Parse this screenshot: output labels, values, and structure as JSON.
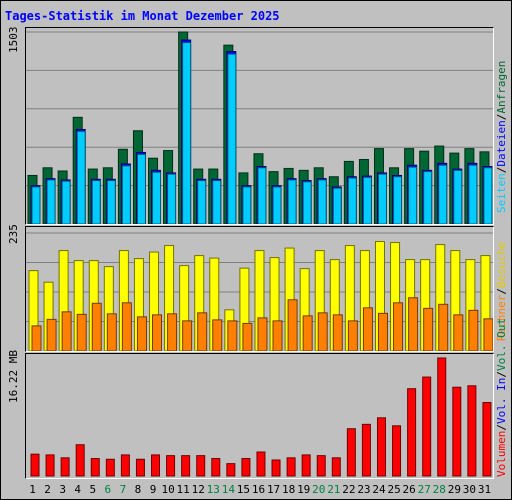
{
  "title": "Tages-Statistik im Monat Dezember 2025",
  "colors": {
    "weekday": "#000000",
    "weekend": "#008040",
    "separator": "#000000"
  },
  "chart_data": [
    {
      "type": "bar",
      "panel": "top",
      "ymax_label": "1503",
      "ylim": [
        0,
        1503
      ],
      "grid": true,
      "categories": [
        "1",
        "2",
        "3",
        "4",
        "5",
        "6",
        "7",
        "8",
        "9",
        "10",
        "11",
        "12",
        "13",
        "14",
        "15",
        "16",
        "17",
        "18",
        "19",
        "20",
        "21",
        "22",
        "23",
        "24",
        "25",
        "26",
        "27",
        "28",
        "29",
        "30",
        "31"
      ],
      "series": [
        {
          "name": "Anfragen",
          "color": "#006633",
          "values": [
            380,
            440,
            415,
            835,
            430,
            440,
            585,
            730,
            515,
            575,
            1503,
            430,
            430,
            1400,
            400,
            550,
            410,
            435,
            420,
            440,
            370,
            490,
            505,
            590,
            440,
            590,
            570,
            610,
            555,
            590,
            565
          ]
        },
        {
          "name": "Dateien",
          "color": "#0000ff",
          "values": [
            300,
            355,
            345,
            740,
            350,
            350,
            470,
            560,
            420,
            400,
            1440,
            350,
            350,
            1350,
            300,
            450,
            300,
            355,
            340,
            355,
            290,
            370,
            375,
            400,
            380,
            460,
            420,
            475,
            430,
            475,
            450
          ]
        },
        {
          "name": "Seiten",
          "color": "#00ccff",
          "values": [
            290,
            345,
            335,
            725,
            340,
            340,
            455,
            545,
            405,
            390,
            1420,
            340,
            340,
            1330,
            290,
            440,
            290,
            345,
            330,
            345,
            280,
            360,
            365,
            390,
            370,
            445,
            410,
            460,
            420,
            460,
            440
          ]
        }
      ],
      "right_labels": [
        "Anfragen",
        "Dateien",
        "Seiten"
      ]
    },
    {
      "type": "bar",
      "panel": "middle",
      "ymax_label": "235",
      "ylim": [
        0,
        235
      ],
      "grid": true,
      "categories": [
        "1",
        "2",
        "3",
        "4",
        "5",
        "6",
        "7",
        "8",
        "9",
        "10",
        "11",
        "12",
        "13",
        "14",
        "15",
        "16",
        "17",
        "18",
        "19",
        "20",
        "21",
        "22",
        "23",
        "24",
        "25",
        "26",
        "27",
        "28",
        "29",
        "30",
        "31"
      ],
      "series": [
        {
          "name": "Besuche",
          "color": "#ffff00",
          "values": [
            160,
            137,
            200,
            180,
            180,
            168,
            200,
            184,
            197,
            210,
            170,
            190,
            185,
            82,
            165,
            200,
            186,
            205,
            164,
            200,
            182,
            210,
            200,
            218,
            216,
            182,
            182,
            212,
            200,
            182,
            190
          ]
        },
        {
          "name": "Rechner",
          "color": "#ff8000",
          "values": [
            50,
            63,
            78,
            73,
            95,
            74,
            96,
            68,
            72,
            74,
            60,
            76,
            62,
            60,
            55,
            66,
            60,
            102,
            70,
            76,
            72,
            60,
            86,
            75,
            96,
            106,
            85,
            93,
            72,
            81,
            64
          ]
        }
      ],
      "right_labels": [
        "Besuche",
        "Rechner"
      ]
    },
    {
      "type": "bar",
      "panel": "bottom",
      "ymax_label": "16.22 MB",
      "ylim": [
        0,
        16.22
      ],
      "grid": false,
      "categories": [
        "1",
        "2",
        "3",
        "4",
        "5",
        "6",
        "7",
        "8",
        "9",
        "10",
        "11",
        "12",
        "13",
        "14",
        "15",
        "16",
        "17",
        "18",
        "19",
        "20",
        "21",
        "22",
        "23",
        "24",
        "25",
        "26",
        "27",
        "28",
        "29",
        "30",
        "31"
      ],
      "series": [
        {
          "name": "Volumen",
          "color": "#ff0000",
          "values": [
            3.0,
            2.9,
            2.5,
            4.3,
            2.4,
            2.3,
            2.9,
            2.3,
            2.9,
            2.8,
            2.8,
            2.8,
            2.4,
            1.7,
            2.4,
            3.3,
            2.2,
            2.5,
            2.9,
            2.8,
            2.5,
            6.5,
            7.1,
            8.0,
            6.9,
            12.0,
            13.6,
            16.22,
            12.2,
            12.4,
            10.1
          ]
        }
      ],
      "right_labels": [
        "Volumen",
        "Vol. In",
        "Vol. Out"
      ],
      "right_label_colors": [
        "#ff0000",
        "#0000ff",
        "#008040"
      ]
    }
  ],
  "x_axis": {
    "labels": [
      "1",
      "2",
      "3",
      "4",
      "5",
      "6",
      "7",
      "8",
      "9",
      "10",
      "11",
      "12",
      "13",
      "14",
      "15",
      "16",
      "17",
      "18",
      "19",
      "20",
      "21",
      "22",
      "23",
      "24",
      "25",
      "26",
      "27",
      "28",
      "29",
      "30",
      "31"
    ],
    "weekend": [
      6,
      7,
      13,
      14,
      20,
      21,
      27,
      28
    ]
  }
}
